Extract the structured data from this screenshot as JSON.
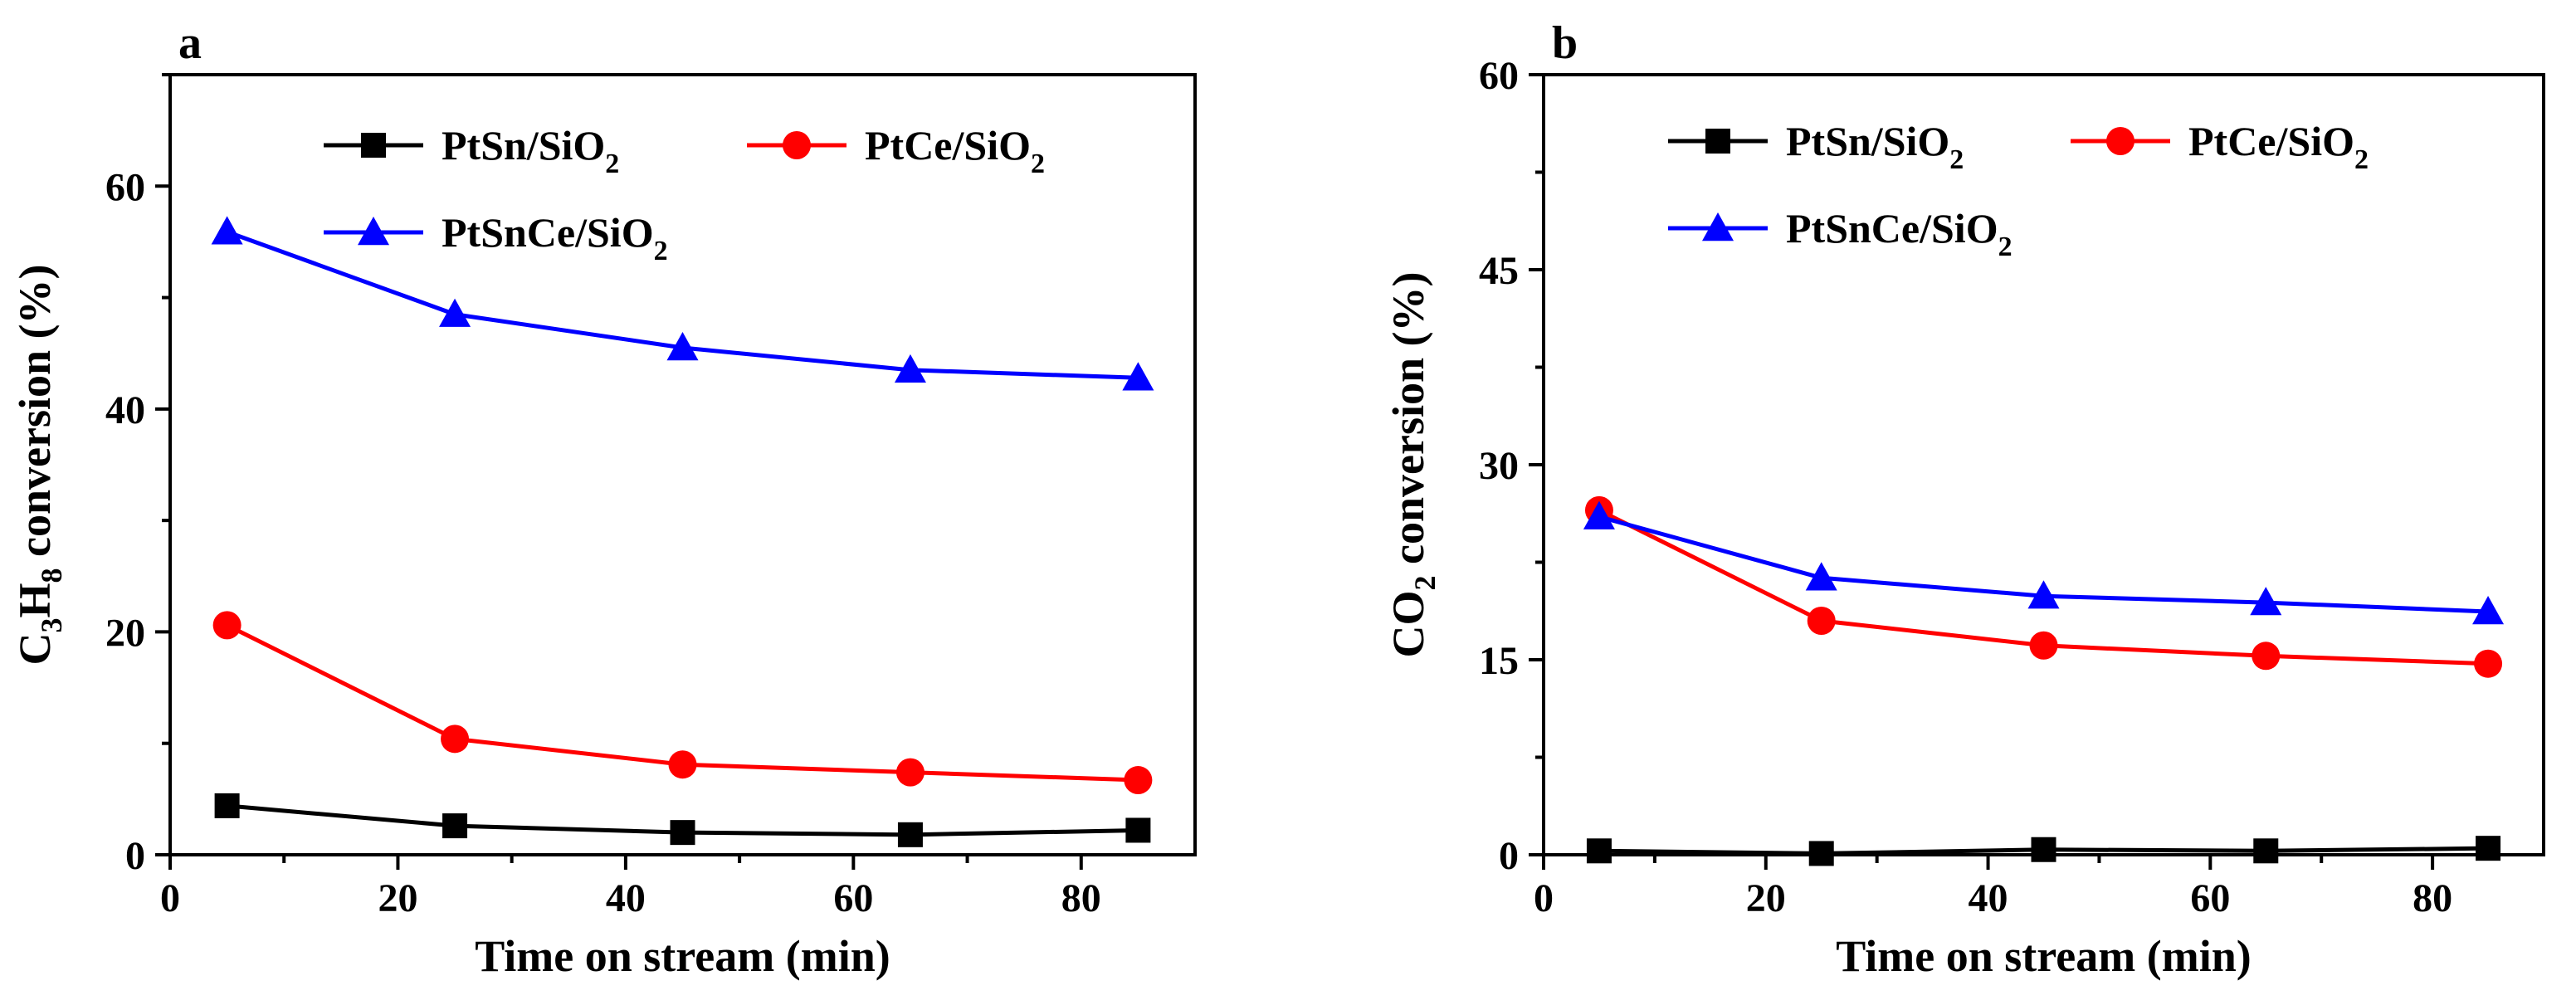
{
  "chart_data": [
    {
      "type": "line",
      "panel_label": "a",
      "xlabel": "Time on stream (min)",
      "ylabel": {
        "base": "C",
        "sub1": "3",
        "mid": "H",
        "sub2": "8",
        "rest": " conversion (%)"
      },
      "xlim": [
        0,
        90
      ],
      "ylim": [
        0,
        70
      ],
      "xticks": [
        0,
        20,
        40,
        60,
        80
      ],
      "xtick_labels": [
        "0",
        "20",
        "40",
        "60",
        "80"
      ],
      "yticks": [
        0,
        20,
        40,
        60
      ],
      "ytick_labels": [
        "0",
        "20",
        "40",
        "60"
      ],
      "minor_xticks": [
        10,
        30,
        50,
        70
      ],
      "minor_yticks": [
        10,
        30,
        50,
        70
      ],
      "legend_position": "top",
      "x": [
        5,
        25,
        45,
        65,
        85
      ],
      "series": [
        {
          "name": "PtSn/SiO2",
          "label_main": "PtSn/SiO",
          "label_sub": "2",
          "color": "#000000",
          "marker": "square",
          "values": [
            4.4,
            2.6,
            2.0,
            1.8,
            2.2
          ]
        },
        {
          "name": "PtCe/SiO2",
          "label_main": "PtCe/SiO",
          "label_sub": "2",
          "color": "#ff0000",
          "marker": "circle",
          "values": [
            20.6,
            10.4,
            8.1,
            7.4,
            6.7
          ]
        },
        {
          "name": "PtSnCe/SiO2",
          "label_main": "PtSnCe/SiO",
          "label_sub": "2",
          "color": "#0000ff",
          "marker": "triangle",
          "values": [
            55.9,
            48.5,
            45.5,
            43.5,
            42.8
          ]
        }
      ]
    },
    {
      "type": "line",
      "panel_label": "b",
      "xlabel": "Time on stream (min)",
      "ylabel": {
        "base": "CO",
        "sub1": "2",
        "mid": "",
        "sub2": "",
        "rest": " conversion (%)"
      },
      "xlim": [
        0,
        90
      ],
      "ylim": [
        0,
        60
      ],
      "xticks": [
        0,
        20,
        40,
        60,
        80
      ],
      "xtick_labels": [
        "0",
        "20",
        "40",
        "60",
        "80"
      ],
      "yticks": [
        0,
        15,
        30,
        45,
        60
      ],
      "ytick_labels": [
        "0",
        "15",
        "30",
        "45",
        "60"
      ],
      "minor_xticks": [
        10,
        30,
        50,
        70
      ],
      "minor_yticks": [
        7.5,
        22.5,
        37.5,
        52.5
      ],
      "legend_position": "top",
      "x": [
        5,
        25,
        45,
        65,
        85
      ],
      "series": [
        {
          "name": "PtSn/SiO2",
          "label_main": "PtSn/SiO",
          "label_sub": "2",
          "color": "#000000",
          "marker": "square",
          "values": [
            0.3,
            0.1,
            0.4,
            0.3,
            0.5
          ]
        },
        {
          "name": "PtCe/SiO2",
          "label_main": "PtCe/SiO",
          "label_sub": "2",
          "color": "#ff0000",
          "marker": "circle",
          "values": [
            26.5,
            18.0,
            16.1,
            15.3,
            14.7
          ]
        },
        {
          "name": "PtSnCe/SiO2",
          "label_main": "PtSnCe/SiO",
          "label_sub": "2",
          "color": "#0000ff",
          "marker": "triangle",
          "values": [
            26.0,
            21.3,
            19.9,
            19.4,
            18.7
          ]
        }
      ]
    }
  ]
}
